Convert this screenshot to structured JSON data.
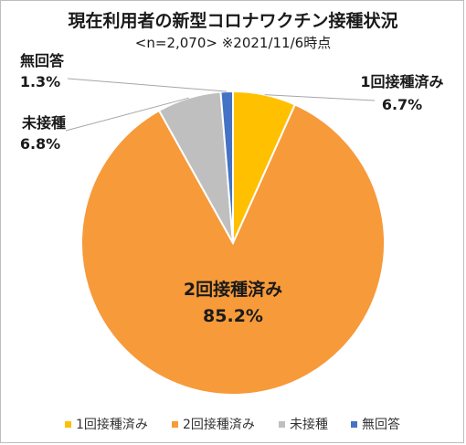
{
  "chart_data": {
    "type": "pie",
    "title": "現在利用者の新型コロナワクチン接種状況",
    "subtitle": "<n=2,070> ※2021/11/6時点",
    "categories": [
      "1回接種済み",
      "2回接種済み",
      "未接種",
      "無回答"
    ],
    "values": [
      6.7,
      85.2,
      6.8,
      1.3
    ],
    "value_labels": [
      "6.7%",
      "85.2%",
      "6.8%",
      "1.3%"
    ],
    "colors": [
      "#FFC000",
      "#F79A3A",
      "#BFBFBF",
      "#4472C4"
    ],
    "legend_position": "bottom",
    "start": "12 o'clock, clockwise"
  }
}
